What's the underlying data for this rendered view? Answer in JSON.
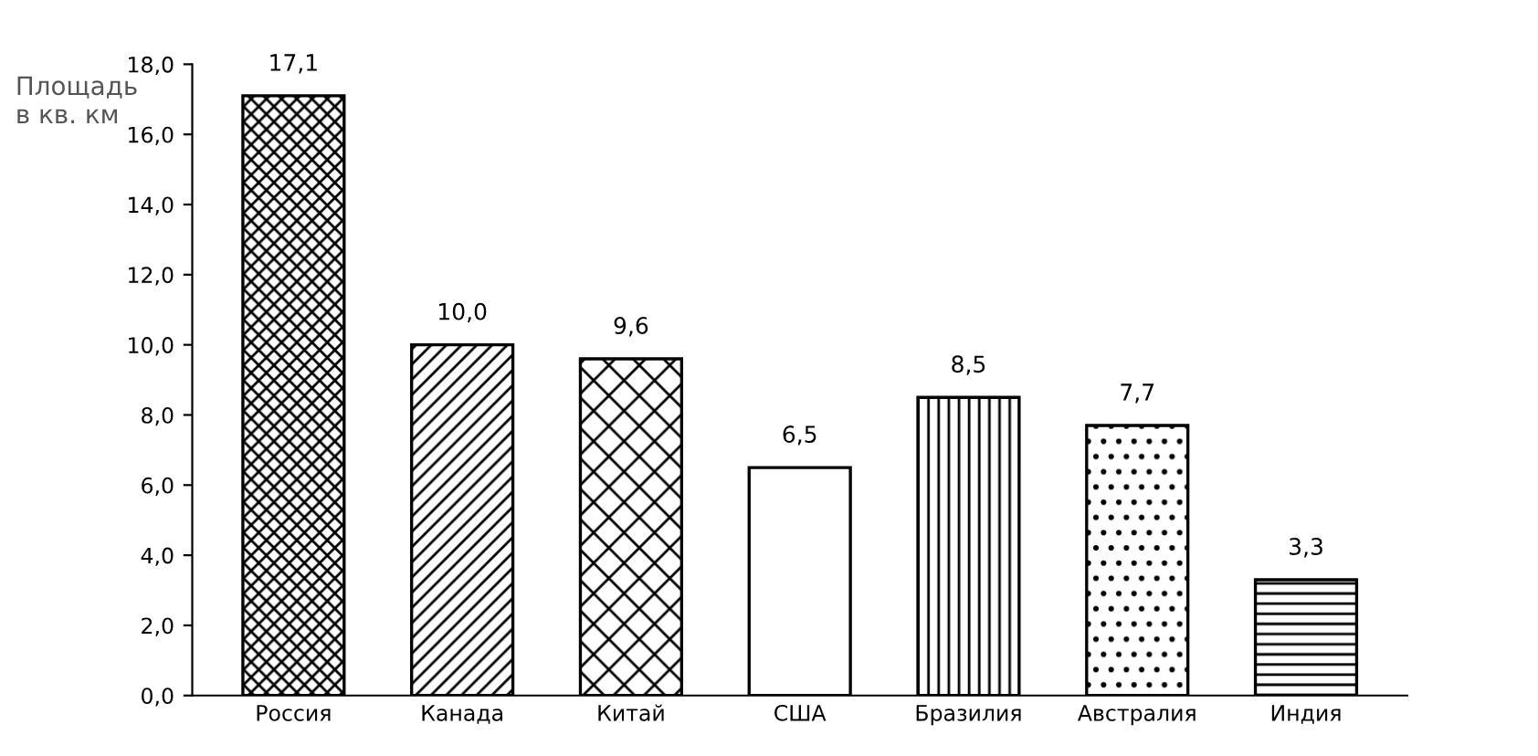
{
  "chart_data": {
    "type": "bar",
    "ylabel": "Площадь в кв. км",
    "categories": [
      "Россия",
      "Канада",
      "Китай",
      "США",
      "Бразилия",
      "Австралия",
      "Индия"
    ],
    "values": [
      17.1,
      10.0,
      9.6,
      6.5,
      8.5,
      7.7,
      3.3
    ],
    "value_labels": [
      "17,1",
      "10,0",
      "9,6",
      "6,5",
      "8,5",
      "7,7",
      "3,3"
    ],
    "ylim": [
      0,
      18
    ],
    "yticks": [
      {
        "value": 0,
        "label": "0,0"
      },
      {
        "value": 2,
        "label": "2,0"
      },
      {
        "value": 4,
        "label": "4,0"
      },
      {
        "value": 6,
        "label": "6,0"
      },
      {
        "value": 8,
        "label": "8,0"
      },
      {
        "value": 10,
        "label": "10,0"
      },
      {
        "value": 12,
        "label": "12,0"
      },
      {
        "value": 14,
        "label": "14,0"
      },
      {
        "value": 16,
        "label": "16,0"
      },
      {
        "value": 18,
        "label": "18,0"
      }
    ],
    "grid": false,
    "legend": false
  }
}
